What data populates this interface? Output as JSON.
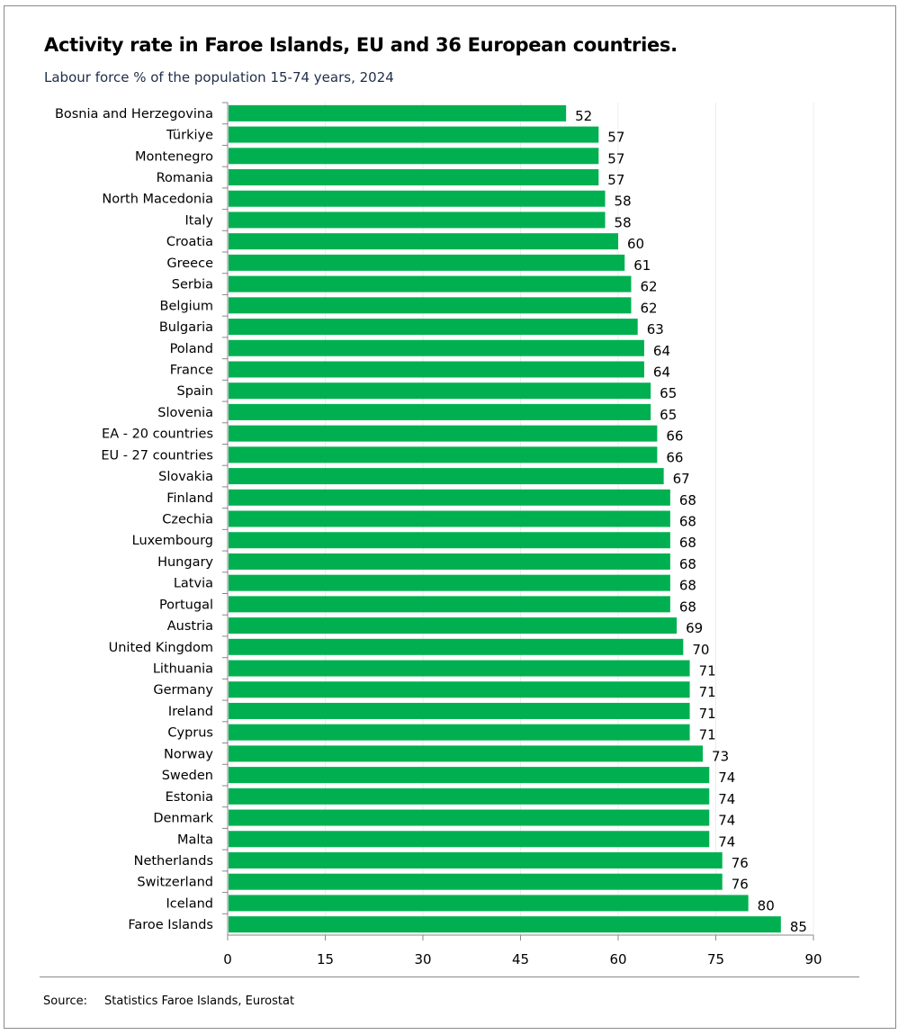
{
  "chart_data": {
    "type": "bar",
    "orientation": "horizontal",
    "title": "Activity rate in Faroe Islands, EU and 36 European countries.",
    "subtitle": "Labour force % of the population 15-74 years, 2024",
    "categories": [
      "Bosnia and Herzegovina",
      "Türkiye",
      "Montenegro",
      "Romania",
      "North Macedonia",
      "Italy",
      "Croatia",
      "Greece",
      "Serbia",
      "Belgium",
      "Bulgaria",
      "Poland",
      "France",
      "Spain",
      "Slovenia",
      "EA - 20 countries",
      "EU - 27 countries",
      "Slovakia",
      "Finland",
      "Czechia",
      "Luxembourg",
      "Hungary",
      "Latvia",
      "Portugal",
      "Austria",
      "United Kingdom",
      "Lithuania",
      "Germany",
      "Ireland",
      "Cyprus",
      "Norway",
      "Sweden",
      "Estonia",
      "Denmark",
      "Malta",
      "Netherlands",
      "Switzerland",
      "Iceland",
      "Faroe Islands"
    ],
    "values": [
      52,
      57,
      57,
      57,
      58,
      58,
      60,
      61,
      62,
      62,
      63,
      64,
      64,
      65,
      65,
      66,
      66,
      67,
      68,
      68,
      68,
      68,
      68,
      68,
      69,
      70,
      71,
      71,
      71,
      71,
      73,
      74,
      74,
      74,
      74,
      76,
      76,
      80,
      85
    ],
    "xlim": [
      0,
      90
    ],
    "xticks": [
      0,
      15,
      30,
      45,
      60,
      75,
      90
    ],
    "grid": true,
    "bar_color": "#00B050",
    "data_labels": true
  },
  "source": {
    "label": "Source:",
    "text": "Statistics Faroe Islands, Eurostat"
  }
}
